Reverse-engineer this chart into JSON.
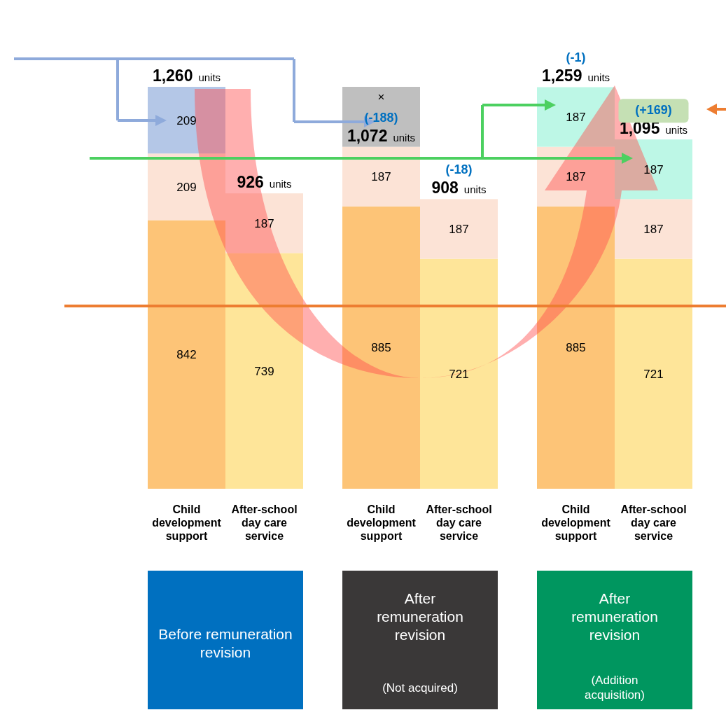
{
  "chart_data": {
    "type": "bar",
    "stacked": true,
    "categories": [
      "Child development support",
      "After-school day care service",
      "Child development support",
      "After-school day care service",
      "Child development support",
      "After-school day care service"
    ],
    "series": [
      {
        "colors": [
          "#fdc477",
          "#fee599",
          "#fdc477",
          "#fee599",
          "#fdc477",
          "#fee599"
        ],
        "values": [
          842,
          739,
          885,
          721,
          885,
          721
        ]
      },
      {
        "colors": [
          "#fce3d6",
          "#fce3d6",
          "#fce3d6",
          "#fce3d6",
          "#fce3d6",
          "#fce3d6"
        ],
        "values": [
          209,
          187,
          187,
          187,
          187,
          187
        ]
      },
      {
        "colors": [
          "#b4c7e7",
          null,
          null,
          null,
          "#bdf7e6",
          "#bdf7e6"
        ],
        "values": [
          209,
          null,
          null,
          null,
          187,
          187
        ],
        "value_labels": [
          "209",
          null,
          null,
          null,
          "187",
          "187"
        ]
      }
    ],
    "data_labels": true,
    "totals": [
      "1,260 units",
      "926 units",
      "1,072 units",
      "908 units",
      "1,259 units",
      "1,095 units"
    ],
    "annotations": [
      "(-188)",
      "(-18)",
      "(-1)",
      "(+169)",
      "Before remuneration revision",
      "After remuneration revision",
      "(Not acquired)",
      "After remuneration revision",
      "(Addition acquisition)",
      "×"
    ]
  }
}
